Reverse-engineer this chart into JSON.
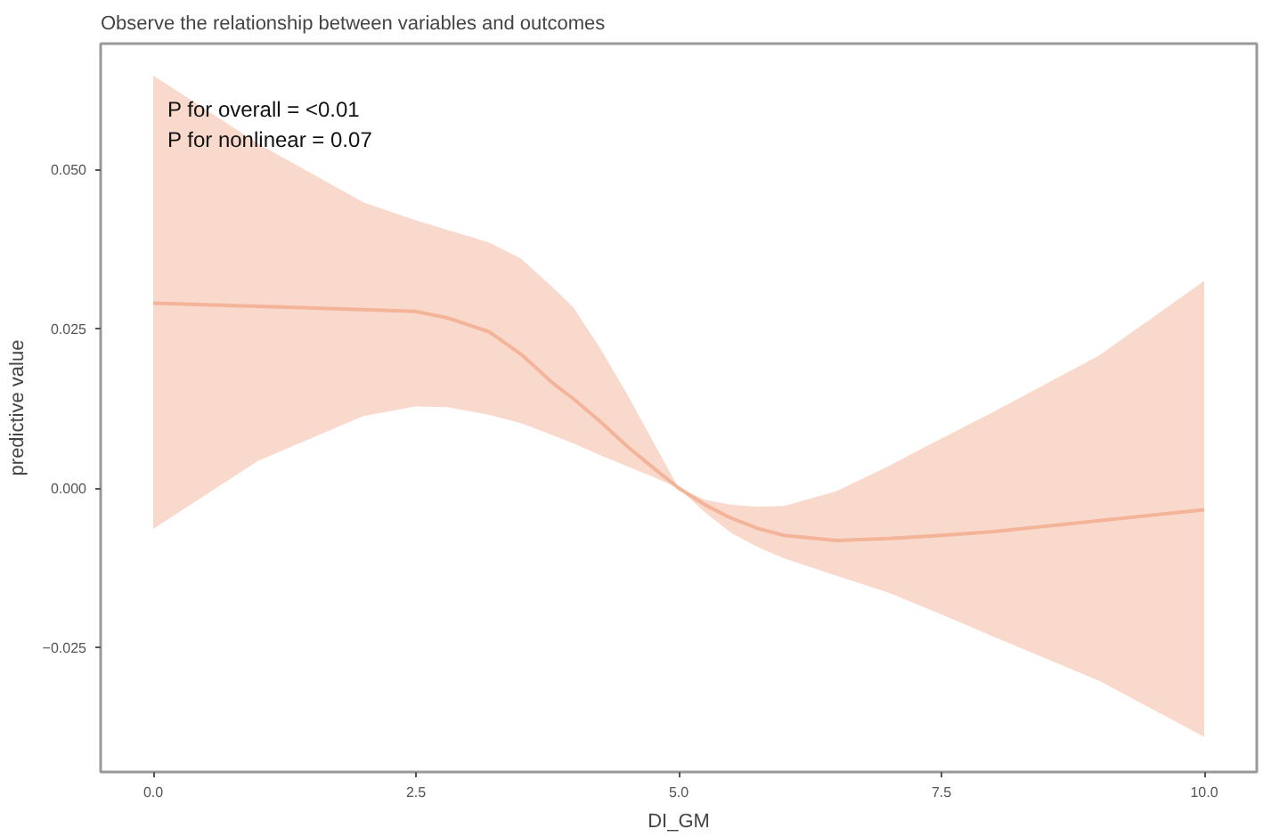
{
  "chart_data": {
    "type": "line",
    "title": "Observe the relationship between variables and outcomes",
    "xlabel": "DI_GM",
    "ylabel": "predictive value",
    "annotations": [
      "P for overall = <0.01\nP for nonlinear = 0.07"
    ],
    "xlim": [
      -0.5,
      10.5
    ],
    "ylim": [
      -0.0445,
      0.0697
    ],
    "xticks": [
      {
        "value": 0,
        "label": "0.0"
      },
      2.5,
      {
        "value": 5,
        "label": "5.0"
      },
      7.5,
      {
        "value": 10,
        "label": "10.0"
      }
    ],
    "yticks": [
      {
        "value": -0.025,
        "label": "−0.025"
      },
      {
        "value": 0,
        "label": "0.000"
      },
      {
        "value": 0.025,
        "label": "0.025"
      },
      {
        "value": 0.05,
        "label": "0.050"
      }
    ],
    "grid": false,
    "marker": "none",
    "line_style": "solid",
    "series": [
      {
        "color": "#f4b49a",
        "x": [
          0,
          1,
          2,
          2.5,
          2.8,
          3.2,
          3.5,
          3.8,
          4,
          4.25,
          4.5,
          4.75,
          5,
          5.25,
          5.5,
          5.75,
          6,
          6.5,
          7,
          7.5,
          8,
          9,
          10
        ],
        "values": [
          0.029,
          0.0285,
          0.028,
          0.0277,
          0.0267,
          0.0245,
          0.021,
          0.0165,
          0.014,
          0.0105,
          0.0067,
          0.0033,
          0,
          -0.0026,
          -0.0047,
          -0.0063,
          -0.0074,
          -0.0082,
          -0.0079,
          -0.0074,
          -0.0068,
          -0.0051,
          -0.0034
        ],
        "upper": [
          0.0647,
          0.054,
          0.0448,
          0.042,
          0.0405,
          0.0385,
          0.036,
          0.0315,
          0.0283,
          0.022,
          0.015,
          0.0075,
          0,
          -0.0018,
          -0.0026,
          -0.0029,
          -0.0028,
          -0.0005,
          0.0035,
          0.0078,
          0.012,
          0.0208,
          0.0325
        ],
        "lower": [
          -0.0064,
          0.0043,
          0.0113,
          0.0128,
          0.0127,
          0.0115,
          0.0102,
          0.0083,
          0.007,
          0.0052,
          0.0035,
          0.0018,
          0,
          -0.0038,
          -0.007,
          -0.0092,
          -0.011,
          -0.0137,
          -0.0164,
          -0.0198,
          -0.0233,
          -0.0302,
          -0.039
        ]
      }
    ]
  }
}
